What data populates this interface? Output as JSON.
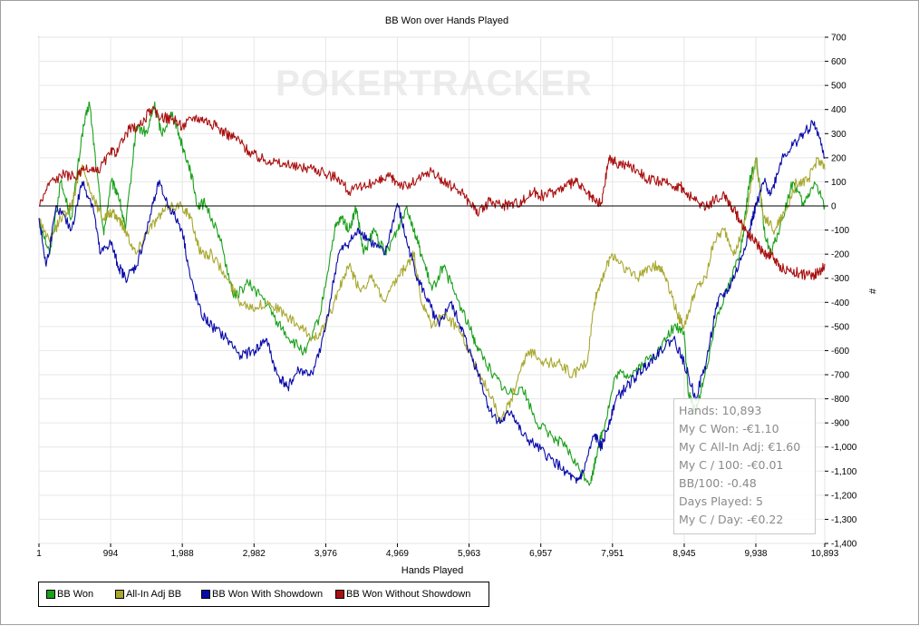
{
  "chart_data": {
    "type": "line",
    "title": "BB Won over Hands Played",
    "xlabel": "Hands Played",
    "ylabel": "#",
    "xlim": [
      1,
      10893
    ],
    "ylim": [
      -1400,
      700
    ],
    "x_ticks": [
      "1",
      "994",
      "1,988",
      "2,982",
      "3,976",
      "4,969",
      "5,963",
      "6,957",
      "7,951",
      "8,945",
      "9,938",
      "10,893"
    ],
    "y_ticks": [
      "700",
      "600",
      "500",
      "400",
      "300",
      "200",
      "100",
      "0",
      "-100",
      "-200",
      "-300",
      "-400",
      "-500",
      "-600",
      "-700",
      "-800",
      "-900",
      "-1,000",
      "-1,100",
      "-1,200",
      "-1,300",
      "-1,400"
    ],
    "y_tick_values": [
      700,
      600,
      500,
      400,
      300,
      200,
      100,
      0,
      -100,
      -200,
      -300,
      -400,
      -500,
      -600,
      -700,
      -800,
      -900,
      -1000,
      -1100,
      -1200,
      -1300,
      -1400
    ],
    "x_tick_values": [
      1,
      994,
      1988,
      2982,
      3976,
      4969,
      5963,
      6957,
      7951,
      8945,
      9938,
      10893
    ],
    "grid": true,
    "watermark": "POKERTRACKER",
    "legend_position": "bottom-left",
    "series": [
      {
        "name": "BB Won",
        "color": "#1aa01a",
        "points": [
          [
            1,
            -50
          ],
          [
            150,
            -200
          ],
          [
            300,
            100
          ],
          [
            450,
            -50
          ],
          [
            600,
            300
          ],
          [
            700,
            430
          ],
          [
            800,
            150
          ],
          [
            900,
            -120
          ],
          [
            1000,
            100
          ],
          [
            1100,
            50
          ],
          [
            1200,
            -100
          ],
          [
            1350,
            330
          ],
          [
            1500,
            300
          ],
          [
            1600,
            420
          ],
          [
            1700,
            300
          ],
          [
            1850,
            390
          ],
          [
            1988,
            250
          ],
          [
            2100,
            150
          ],
          [
            2200,
            0
          ],
          [
            2300,
            10
          ],
          [
            2500,
            -120
          ],
          [
            2700,
            -380
          ],
          [
            2900,
            -320
          ],
          [
            3100,
            -380
          ],
          [
            3300,
            -480
          ],
          [
            3500,
            -560
          ],
          [
            3700,
            -610
          ],
          [
            3900,
            -450
          ],
          [
            4100,
            -100
          ],
          [
            4200,
            -50
          ],
          [
            4300,
            -100
          ],
          [
            4400,
            -10
          ],
          [
            4500,
            -200
          ],
          [
            4650,
            -100
          ],
          [
            4800,
            -200
          ],
          [
            4969,
            -100
          ],
          [
            5100,
            0
          ],
          [
            5200,
            -100
          ],
          [
            5300,
            -200
          ],
          [
            5450,
            -350
          ],
          [
            5600,
            -250
          ],
          [
            5750,
            -350
          ],
          [
            5963,
            -500
          ],
          [
            6100,
            -600
          ],
          [
            6300,
            -700
          ],
          [
            6500,
            -780
          ],
          [
            6700,
            -750
          ],
          [
            6900,
            -900
          ],
          [
            7100,
            -950
          ],
          [
            7300,
            -1000
          ],
          [
            7500,
            -1100
          ],
          [
            7650,
            -1150
          ],
          [
            7750,
            -1000
          ],
          [
            7850,
            -900
          ],
          [
            8000,
            -700
          ],
          [
            8200,
            -700
          ],
          [
            8400,
            -650
          ],
          [
            8600,
            -600
          ],
          [
            8800,
            -500
          ],
          [
            8945,
            -520
          ],
          [
            9000,
            -780
          ],
          [
            9100,
            -850
          ],
          [
            9200,
            -750
          ],
          [
            9400,
            -450
          ],
          [
            9600,
            -300
          ],
          [
            9750,
            -150
          ],
          [
            9850,
            100
          ],
          [
            9950,
            200
          ],
          [
            10050,
            -100
          ],
          [
            10150,
            -200
          ],
          [
            10300,
            -60
          ],
          [
            10450,
            100
          ],
          [
            10600,
            0
          ],
          [
            10750,
            100
          ],
          [
            10893,
            0
          ]
        ]
      },
      {
        "name": "All-In Adj BB",
        "color": "#a8a830",
        "points": [
          [
            1,
            -50
          ],
          [
            150,
            -150
          ],
          [
            300,
            -50
          ],
          [
            450,
            0
          ],
          [
            600,
            170
          ],
          [
            750,
            30
          ],
          [
            900,
            -50
          ],
          [
            1000,
            -30
          ],
          [
            1100,
            -50
          ],
          [
            1200,
            -100
          ],
          [
            1350,
            -200
          ],
          [
            1500,
            -100
          ],
          [
            1650,
            -50
          ],
          [
            1800,
            0
          ],
          [
            1988,
            0
          ],
          [
            2100,
            -50
          ],
          [
            2250,
            -200
          ],
          [
            2400,
            -200
          ],
          [
            2600,
            -300
          ],
          [
            2800,
            -400
          ],
          [
            3000,
            -420
          ],
          [
            3200,
            -400
          ],
          [
            3400,
            -450
          ],
          [
            3600,
            -500
          ],
          [
            3800,
            -550
          ],
          [
            3976,
            -500
          ],
          [
            4150,
            -350
          ],
          [
            4300,
            -250
          ],
          [
            4450,
            -350
          ],
          [
            4600,
            -300
          ],
          [
            4800,
            -400
          ],
          [
            4969,
            -300
          ],
          [
            5100,
            -250
          ],
          [
            5200,
            -200
          ],
          [
            5300,
            -400
          ],
          [
            5450,
            -500
          ],
          [
            5600,
            -450
          ],
          [
            5800,
            -500
          ],
          [
            5963,
            -600
          ],
          [
            6100,
            -700
          ],
          [
            6300,
            -800
          ],
          [
            6400,
            -900
          ],
          [
            6550,
            -800
          ],
          [
            6700,
            -650
          ],
          [
            6850,
            -600
          ],
          [
            7000,
            -650
          ],
          [
            7200,
            -650
          ],
          [
            7400,
            -700
          ],
          [
            7600,
            -650
          ],
          [
            7700,
            -400
          ],
          [
            7800,
            -300
          ],
          [
            7951,
            -200
          ],
          [
            8100,
            -250
          ],
          [
            8300,
            -300
          ],
          [
            8450,
            -250
          ],
          [
            8600,
            -250
          ],
          [
            8700,
            -300
          ],
          [
            8850,
            -450
          ],
          [
            8945,
            -500
          ],
          [
            9100,
            -350
          ],
          [
            9250,
            -300
          ],
          [
            9350,
            -150
          ],
          [
            9500,
            -100
          ],
          [
            9650,
            -200
          ],
          [
            9800,
            -50
          ],
          [
            9938,
            200
          ],
          [
            10050,
            -50
          ],
          [
            10200,
            -100
          ],
          [
            10350,
            -20
          ],
          [
            10500,
            100
          ],
          [
            10650,
            100
          ],
          [
            10800,
            200
          ],
          [
            10893,
            150
          ]
        ]
      },
      {
        "name": "BB Won With Showdown",
        "color": "#0a0aaa",
        "points": [
          [
            1,
            -50
          ],
          [
            100,
            -250
          ],
          [
            250,
            0
          ],
          [
            450,
            -100
          ],
          [
            600,
            100
          ],
          [
            750,
            0
          ],
          [
            850,
            -200
          ],
          [
            994,
            -150
          ],
          [
            1100,
            -250
          ],
          [
            1200,
            -300
          ],
          [
            1350,
            -250
          ],
          [
            1500,
            -100
          ],
          [
            1650,
            100
          ],
          [
            1800,
            0
          ],
          [
            1988,
            -100
          ],
          [
            2100,
            -300
          ],
          [
            2250,
            -450
          ],
          [
            2400,
            -500
          ],
          [
            2600,
            -550
          ],
          [
            2800,
            -620
          ],
          [
            3000,
            -600
          ],
          [
            3150,
            -550
          ],
          [
            3300,
            -700
          ],
          [
            3450,
            -750
          ],
          [
            3600,
            -680
          ],
          [
            3800,
            -700
          ],
          [
            3976,
            -500
          ],
          [
            4150,
            -200
          ],
          [
            4300,
            -150
          ],
          [
            4450,
            -100
          ],
          [
            4600,
            -150
          ],
          [
            4800,
            -200
          ],
          [
            4969,
            10
          ],
          [
            5100,
            -150
          ],
          [
            5250,
            -300
          ],
          [
            5400,
            -400
          ],
          [
            5550,
            -500
          ],
          [
            5700,
            -400
          ],
          [
            5850,
            -500
          ],
          [
            5963,
            -600
          ],
          [
            6100,
            -700
          ],
          [
            6250,
            -850
          ],
          [
            6400,
            -900
          ],
          [
            6550,
            -850
          ],
          [
            6700,
            -950
          ],
          [
            6900,
            -1000
          ],
          [
            7100,
            -1050
          ],
          [
            7300,
            -1100
          ],
          [
            7450,
            -1150
          ],
          [
            7550,
            -1100
          ],
          [
            7700,
            -950
          ],
          [
            7800,
            -1000
          ],
          [
            7900,
            -900
          ],
          [
            8000,
            -800
          ],
          [
            8150,
            -750
          ],
          [
            8300,
            -700
          ],
          [
            8450,
            -650
          ],
          [
            8600,
            -600
          ],
          [
            8800,
            -550
          ],
          [
            8945,
            -650
          ],
          [
            9100,
            -800
          ],
          [
            9250,
            -650
          ],
          [
            9400,
            -400
          ],
          [
            9550,
            -350
          ],
          [
            9700,
            -250
          ],
          [
            9850,
            -100
          ],
          [
            9938,
            0
          ],
          [
            10050,
            100
          ],
          [
            10150,
            50
          ],
          [
            10300,
            200
          ],
          [
            10450,
            250
          ],
          [
            10600,
            300
          ],
          [
            10750,
            350
          ],
          [
            10893,
            200
          ]
        ]
      },
      {
        "name": "BB Won Without Showdown",
        "color": "#aa1010",
        "points": [
          [
            1,
            0
          ],
          [
            150,
            100
          ],
          [
            350,
            130
          ],
          [
            500,
            120
          ],
          [
            650,
            150
          ],
          [
            800,
            140
          ],
          [
            994,
            220
          ],
          [
            1100,
            230
          ],
          [
            1250,
            320
          ],
          [
            1400,
            330
          ],
          [
            1550,
            400
          ],
          [
            1700,
            370
          ],
          [
            1850,
            360
          ],
          [
            1988,
            330
          ],
          [
            2150,
            370
          ],
          [
            2300,
            360
          ],
          [
            2450,
            330
          ],
          [
            2600,
            300
          ],
          [
            2750,
            280
          ],
          [
            2900,
            230
          ],
          [
            3050,
            200
          ],
          [
            3200,
            190
          ],
          [
            3400,
            170
          ],
          [
            3600,
            160
          ],
          [
            3800,
            160
          ],
          [
            3976,
            130
          ],
          [
            4150,
            120
          ],
          [
            4300,
            60
          ],
          [
            4500,
            80
          ],
          [
            4700,
            100
          ],
          [
            4850,
            120
          ],
          [
            4969,
            100
          ],
          [
            5100,
            80
          ],
          [
            5300,
            120
          ],
          [
            5450,
            140
          ],
          [
            5600,
            100
          ],
          [
            5800,
            70
          ],
          [
            5963,
            20
          ],
          [
            6100,
            -30
          ],
          [
            6250,
            20
          ],
          [
            6400,
            0
          ],
          [
            6550,
            10
          ],
          [
            6700,
            20
          ],
          [
            6850,
            60
          ],
          [
            7000,
            40
          ],
          [
            7150,
            60
          ],
          [
            7300,
            80
          ],
          [
            7450,
            100
          ],
          [
            7600,
            50
          ],
          [
            7700,
            20
          ],
          [
            7800,
            10
          ],
          [
            7900,
            200
          ],
          [
            8000,
            180
          ],
          [
            8150,
            170
          ],
          [
            8300,
            150
          ],
          [
            8450,
            110
          ],
          [
            8600,
            100
          ],
          [
            8750,
            90
          ],
          [
            8900,
            80
          ],
          [
            8945,
            60
          ],
          [
            9100,
            20
          ],
          [
            9250,
            0
          ],
          [
            9350,
            20
          ],
          [
            9500,
            50
          ],
          [
            9600,
            0
          ],
          [
            9700,
            -50
          ],
          [
            9800,
            -100
          ],
          [
            9938,
            -150
          ],
          [
            10050,
            -200
          ],
          [
            10150,
            -200
          ],
          [
            10250,
            -250
          ],
          [
            10400,
            -270
          ],
          [
            10550,
            -280
          ],
          [
            10700,
            -290
          ],
          [
            10800,
            -280
          ],
          [
            10893,
            -240
          ]
        ]
      }
    ]
  },
  "stats": {
    "hands": "Hands: 10,893",
    "my_c_won": "My C Won: -€1.10",
    "all_in_adj": "My C All-In Adj: €1.60",
    "per_100": "My C / 100: -€0.01",
    "bb_100": "BB/100: -0.48",
    "days_played": "Days Played: 5",
    "per_day": "My C / Day: -€0.22"
  }
}
